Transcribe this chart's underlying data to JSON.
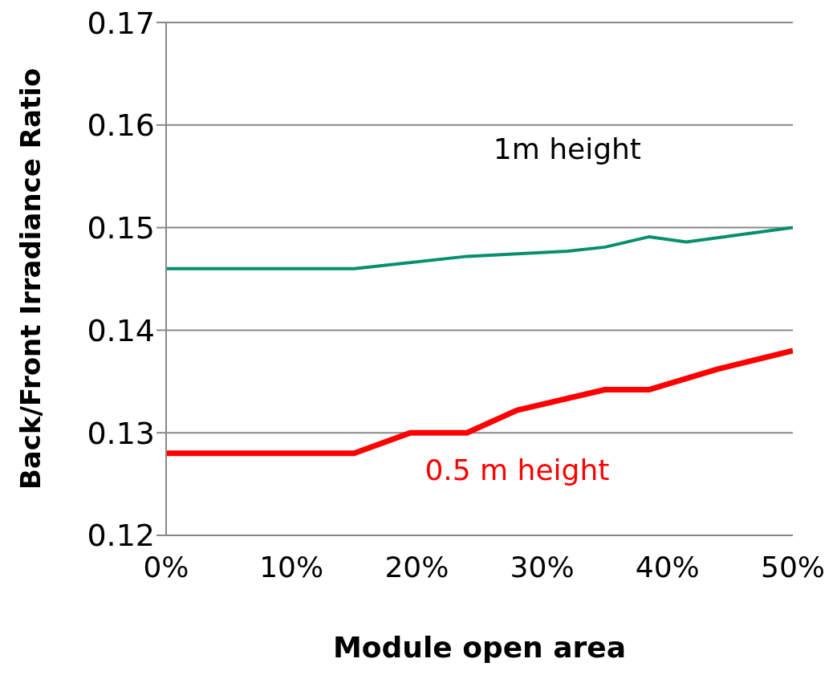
{
  "chart_data": {
    "type": "line",
    "xlabel": "Module open area",
    "ylabel": "Back/Front  Irradiance Ratio",
    "series": [
      {
        "name": "1m height",
        "color": "#068f6e",
        "x": [
          0,
          15,
          24,
          32,
          35,
          38.5,
          41.5,
          50
        ],
        "values": [
          0.146,
          0.146,
          0.1472,
          0.1477,
          0.1481,
          0.1491,
          0.1486,
          0.15
        ]
      },
      {
        "name": "0.5 m height",
        "color": "#ff0000",
        "x": [
          0,
          15,
          19.5,
          24,
          28,
          35,
          38.5,
          44,
          50
        ],
        "values": [
          0.128,
          0.128,
          0.13,
          0.13,
          0.1322,
          0.1342,
          0.1342,
          0.1362,
          0.138
        ]
      }
    ],
    "xlim": [
      0,
      50
    ],
    "xticks": [
      {
        "value": 0,
        "label": "0%"
      },
      {
        "value": 10,
        "label": "10%"
      },
      {
        "value": 20,
        "label": "20%"
      },
      {
        "value": 30,
        "label": "30%"
      },
      {
        "value": 40,
        "label": "40%"
      },
      {
        "value": 50,
        "label": "50%"
      }
    ],
    "ylim": [
      0.12,
      0.17
    ],
    "yticks": [
      {
        "value": 0.12,
        "label": "0.12"
      },
      {
        "value": 0.13,
        "label": "0.13"
      },
      {
        "value": 0.14,
        "label": "0.14"
      },
      {
        "value": 0.15,
        "label": "0.15"
      },
      {
        "value": 0.16,
        "label": "0.16"
      },
      {
        "value": 0.17,
        "label": "0.17"
      }
    ],
    "grid": "y",
    "legend": false,
    "marker": "none",
    "line_style": "solid"
  }
}
